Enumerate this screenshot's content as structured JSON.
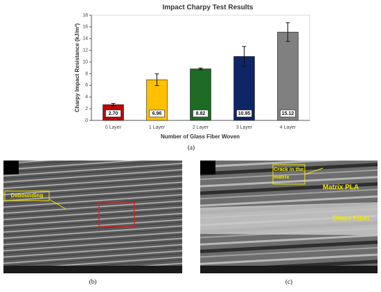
{
  "chart_data": {
    "type": "bar",
    "title": "Impact Charpy Test Results",
    "x_label": "Number of Glass Fiber Woven",
    "y_label": "Charpy Impact Resistance (kJ/m²)",
    "categories": [
      "0 Layer",
      "1 Layer",
      "2 Layer",
      "3 Layer",
      "4 Layer"
    ],
    "values": [
      2.7,
      6.96,
      8.82,
      10.95,
      15.12
    ],
    "value_labels": [
      "2.70",
      "6.96",
      "8.82",
      "10.95",
      "15.12"
    ],
    "errors": [
      0.2,
      1.0,
      0.15,
      1.7,
      1.6
    ],
    "colors": [
      "#c00000",
      "#ffc000",
      "#1e6b23",
      "#0e2566",
      "#808080"
    ],
    "ylim": [
      0,
      18
    ],
    "yticks": [
      0,
      2,
      4,
      6,
      8,
      10,
      12,
      14,
      16,
      18
    ],
    "grid": false
  },
  "panels": {
    "a": "(a)",
    "b": "(b)",
    "c": "(c)"
  },
  "images": {
    "b": {
      "annotation": "Debounding"
    },
    "c": {
      "annotations": [
        "Crack in the matrix",
        "Matrix PLA",
        "Glass Fiber"
      ]
    }
  }
}
